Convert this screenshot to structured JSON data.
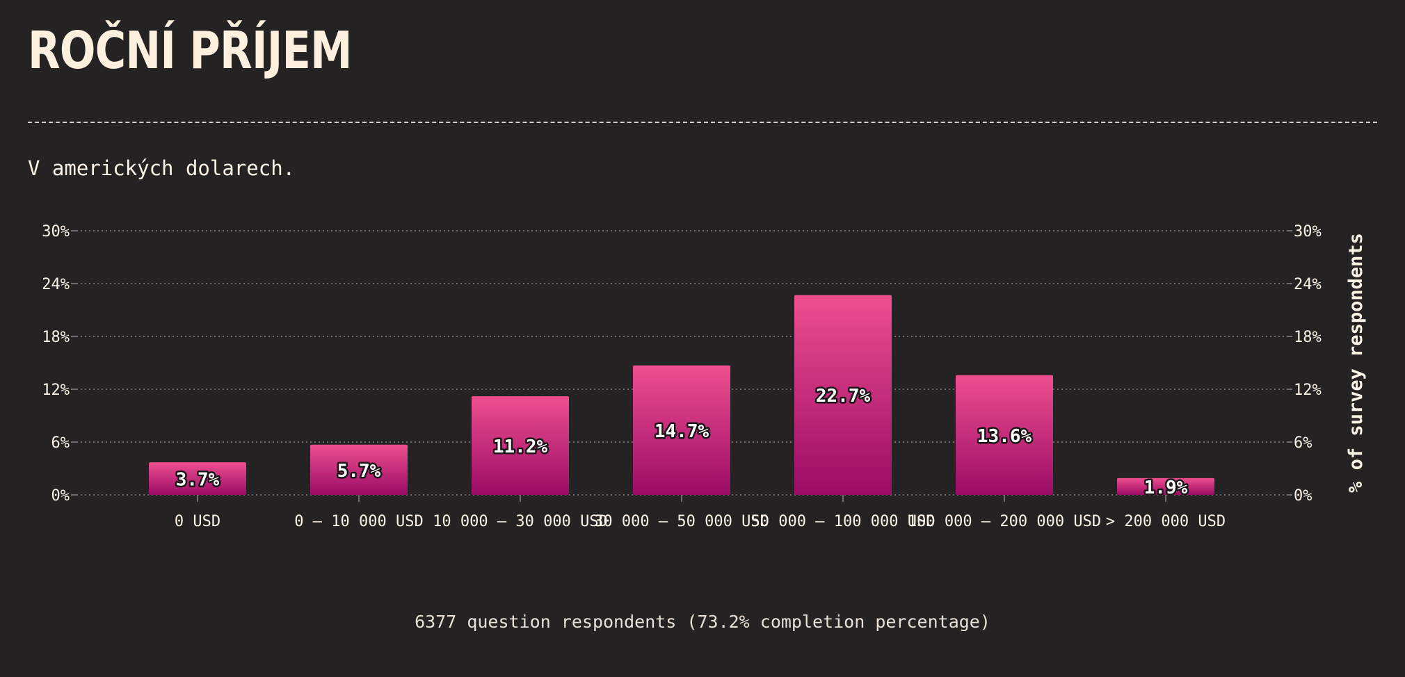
{
  "page": {
    "title": "ROČNÍ PŘÍJEM",
    "subtitle": "V amerických dolarech.",
    "footer": "6377 question respondents (73.2% completion percentage)"
  },
  "colors": {
    "background": "#252223",
    "bar_top": "#ee4f8f",
    "bar_bottom": "#9b0c66",
    "text": "#fdf4e8",
    "grid": "#8a8486"
  },
  "chart_data": {
    "type": "bar",
    "categories": [
      "0 USD",
      "0 – 10 000 USD",
      "10 000 – 30 000 USD",
      "30 000 – 50 000 USD",
      "50 000 – 100 000 USD",
      "100 000 – 200 000 USD",
      "> 200 000 USD"
    ],
    "values": [
      3.7,
      5.7,
      11.2,
      14.7,
      22.7,
      13.6,
      1.9
    ],
    "data_labels": [
      "3.7%",
      "5.7%",
      "11.2%",
      "14.7%",
      "22.7%",
      "13.6%",
      "1.9%"
    ],
    "ylabel": "% of survey respondents",
    "ylim": [
      0,
      30
    ],
    "yticks": [
      0,
      6,
      12,
      18,
      24,
      30
    ],
    "ytick_labels": [
      "0%",
      "6%",
      "12%",
      "18%",
      "24%",
      "30%"
    ],
    "grid": true,
    "y_axis_both_sides": true
  }
}
